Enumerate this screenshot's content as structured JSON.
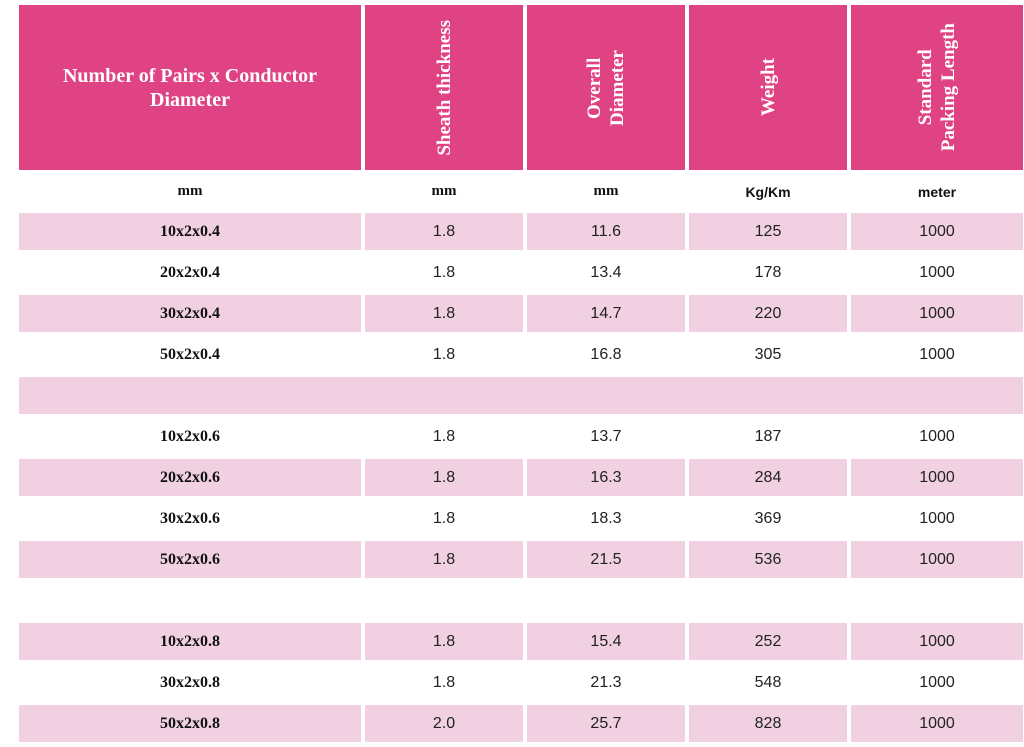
{
  "headers": {
    "col1": "Number of Pairs x Conductor Diameter",
    "col2": "Sheath thickness",
    "col3": "Overall\nDiameter",
    "col4": "Weight",
    "col5": "Standard\nPacking Length"
  },
  "units": [
    "mm",
    "mm",
    "mm",
    "Kg/Km",
    "meter"
  ],
  "rows": [
    [
      "10x2x0.4",
      "1.8",
      "11.6",
      "125",
      "1000"
    ],
    [
      "20x2x0.4",
      "1.8",
      "13.4",
      "178",
      "1000"
    ],
    [
      "30x2x0.4",
      "1.8",
      "14.7",
      "220",
      "1000"
    ],
    [
      "50x2x0.4",
      "1.8",
      "16.8",
      "305",
      "1000"
    ],
    [
      "10x2x0.6",
      "1.8",
      "13.7",
      "187",
      "1000"
    ],
    [
      "20x2x0.6",
      "1.8",
      "16.3",
      "284",
      "1000"
    ],
    [
      "30x2x0.6",
      "1.8",
      "18.3",
      "369",
      "1000"
    ],
    [
      "50x2x0.6",
      "1.8",
      "21.5",
      "536",
      "1000"
    ],
    [
      "10x2x0.8",
      "1.8",
      "15.4",
      "252",
      "1000"
    ],
    [
      "30x2x0.8",
      "1.8",
      "21.3",
      "548",
      "1000"
    ],
    [
      "50x2x0.8",
      "2.0",
      "25.7",
      "828",
      "1000"
    ]
  ],
  "colors": {
    "header_bg": "#e04383",
    "row_shade": "#f0d0e1"
  }
}
